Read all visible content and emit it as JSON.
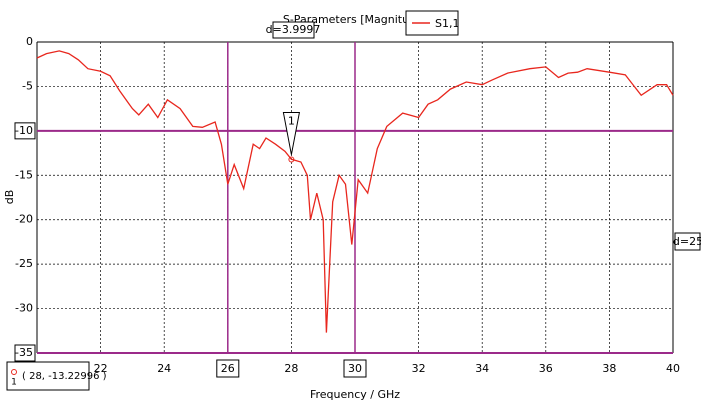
{
  "chart_data": {
    "type": "line",
    "title": "S-Parameters [Magnitude]",
    "xlabel": "Frequency / GHz",
    "ylabel": "dB",
    "series": [
      {
        "name": "S1,1",
        "color": "#e8271e",
        "x": [
          20,
          20.3,
          20.7,
          21,
          21.3,
          21.6,
          22,
          22.3,
          22.6,
          23,
          23.2,
          23.5,
          23.8,
          24.1,
          24.5,
          24.9,
          25.2,
          25.6,
          25.8,
          26,
          26.2,
          26.5,
          26.8,
          27,
          27.2,
          27.5,
          27.8,
          28,
          28.3,
          28.5,
          28.6,
          28.8,
          29,
          29.1,
          29.3,
          29.5,
          29.7,
          29.9,
          30.1,
          30.4,
          30.7,
          31,
          31.5,
          32,
          32.3,
          32.6,
          33,
          33.5,
          34,
          34.3,
          34.8,
          35.5,
          36,
          36.4,
          36.7,
          37,
          37.3,
          38,
          38.5,
          39,
          39.5,
          39.8,
          40
        ],
        "values": [
          -1.8,
          -1.3,
          -1,
          -1.3,
          -2,
          -3,
          -3.3,
          -3.8,
          -5.5,
          -7.5,
          -8.2,
          -7,
          -8.5,
          -6.5,
          -7.5,
          -9.5,
          -9.6,
          -9,
          -11.5,
          -16,
          -13.8,
          -16.5,
          -11.5,
          -12,
          -10.8,
          -11.5,
          -12.3,
          -13.2,
          -13.5,
          -15,
          -20,
          -17,
          -20,
          -32.7,
          -18,
          -15,
          -16,
          -22.8,
          -15.5,
          -17,
          -12,
          -9.5,
          -8,
          -8.5,
          -7,
          -6.5,
          -5.3,
          -4.5,
          -4.8,
          -4.3,
          -3.5,
          -3,
          -2.8,
          -4,
          -3.5,
          -3.4,
          -3,
          -3.4,
          -3.7,
          -6,
          -4.8,
          -4.8,
          -6
        ]
      }
    ],
    "xlim": [
      20,
      40
    ],
    "xticks": [
      22,
      24,
      26,
      28,
      30,
      32,
      34,
      36,
      38,
      40
    ],
    "ylim": [
      -35,
      0
    ],
    "yticks": [
      0,
      -5,
      -10,
      -15,
      -20,
      -25,
      -30,
      -35
    ],
    "grid": true,
    "vlines": [
      26,
      30
    ],
    "hlines": [
      -10,
      -35
    ],
    "marker_line_color": "#9b2a8a",
    "annotations": [
      "d=3.9997",
      "d=25"
    ],
    "marker": {
      "x": 28,
      "y": -13.22996,
      "label": "1",
      "readout": "( 28, -13.22996 )"
    }
  }
}
